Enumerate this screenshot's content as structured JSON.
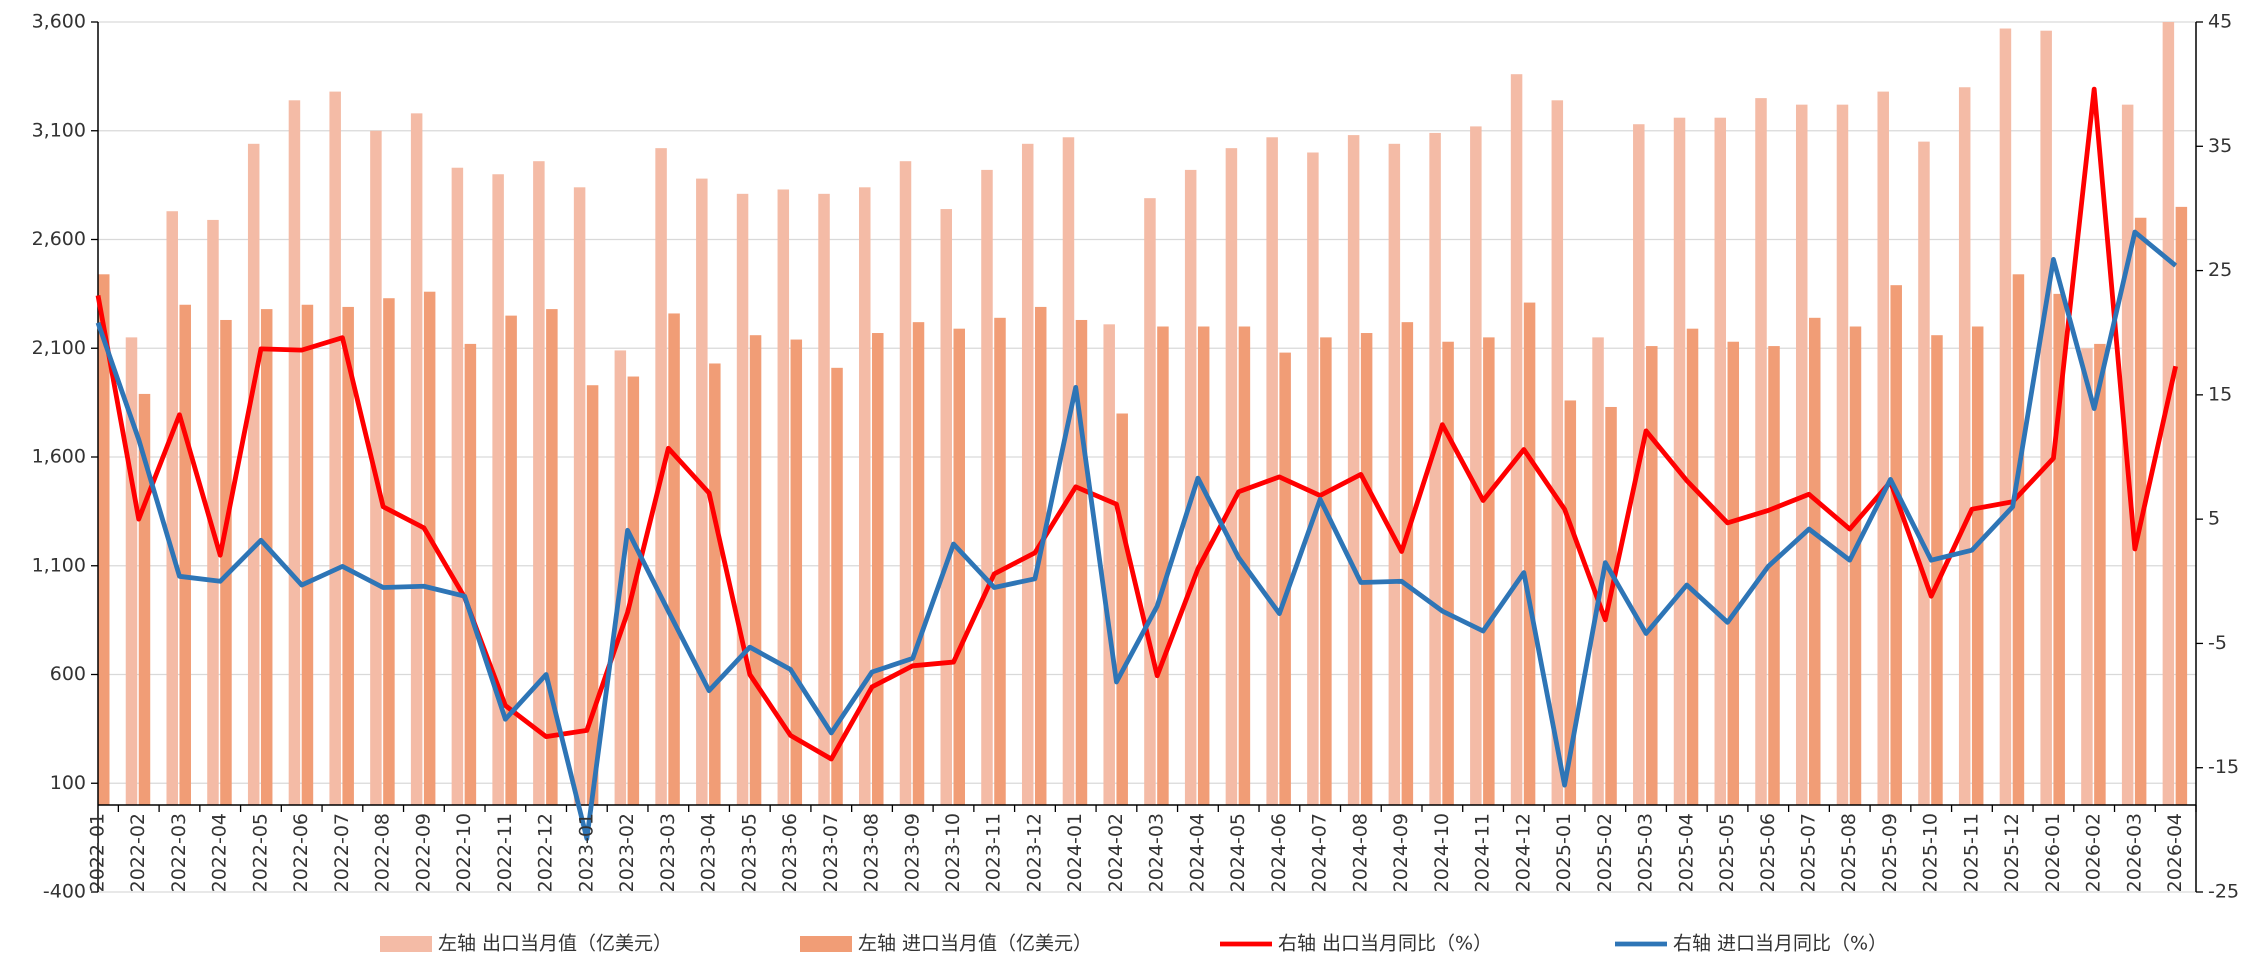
{
  "chart_data": {
    "type": "bar",
    "categories": [
      "2022-01",
      "2022-02",
      "2022-03",
      "2022-04",
      "2022-05",
      "2022-06",
      "2022-07",
      "2022-08",
      "2022-09",
      "2022-10",
      "2022-11",
      "2022-12",
      "2023-01",
      "2023-02",
      "2023-03",
      "2023-04",
      "2023-05",
      "2023-06",
      "2023-07",
      "2023-08",
      "2023-09",
      "2023-10",
      "2023-11",
      "2023-12",
      "2024-01",
      "2024-02",
      "2024-03",
      "2024-04",
      "2024-05",
      "2024-06",
      "2024-07",
      "2024-08",
      "2024-09",
      "2024-10",
      "2024-11",
      "2024-12",
      "2025-01",
      "2025-02",
      "2025-03",
      "2025-04",
      "2025-05",
      "2025-06",
      "2025-07",
      "2025-08",
      "2025-09",
      "2025-10",
      "2025-11",
      "2025-12",
      "2026-01",
      "2026-02",
      "2026-03",
      "2026-04"
    ],
    "series": [
      {
        "name": "左轴 出口当月值（亿美元）",
        "type": "bar",
        "color": "#f4bba6",
        "values": [
          null,
          2150,
          2730,
          2690,
          3040,
          3240,
          3280,
          3100,
          3180,
          2930,
          2900,
          2960,
          2840,
          2090,
          3020,
          2880,
          2810,
          2830,
          2810,
          2840,
          2960,
          2740,
          2920,
          3040,
          3070,
          2210,
          2790,
          2920,
          3020,
          3070,
          3000,
          3080,
          3040,
          3090,
          3120,
          3360,
          3240,
          2150,
          3130,
          3160,
          3160,
          3250,
          3220,
          3220,
          3280,
          3050,
          3300,
          3570,
          3560,
          2100,
          3220,
          3600
        ]
      },
      {
        "name": "左轴 进口当月值（亿美元）",
        "type": "bar",
        "color": "#f19d76",
        "values": [
          2440,
          1890,
          2300,
          2230,
          2280,
          2300,
          2290,
          2330,
          2360,
          2120,
          2250,
          2280,
          1930,
          1970,
          2260,
          2030,
          2160,
          2140,
          2010,
          2170,
          2220,
          2190,
          2240,
          2290,
          2230,
          1800,
          2200,
          2200,
          2200,
          2080,
          2150,
          2170,
          2220,
          2130,
          2150,
          2310,
          1860,
          1830,
          2110,
          2190,
          2130,
          2110,
          2240,
          2200,
          2390,
          2160,
          2200,
          2440,
          2350,
          2120,
          2700,
          2750
        ]
      },
      {
        "name": "右轴 出口当月同比（%）",
        "type": "line",
        "axis": "y2",
        "color": "#ff0000",
        "values": [
          23.0,
          5.0,
          13.4,
          2.1,
          18.7,
          18.6,
          19.6,
          6.0,
          4.3,
          -1.3,
          -10.0,
          -12.5,
          -12.0,
          -2.5,
          10.7,
          7.1,
          -7.5,
          -12.4,
          -14.3,
          -8.5,
          -6.8,
          -6.5,
          0.6,
          2.3,
          7.6,
          6.2,
          -7.6,
          1.0,
          7.2,
          8.4,
          6.9,
          8.6,
          2.4,
          12.6,
          6.5,
          10.6,
          5.8,
          -3.1,
          12.1,
          8.1,
          4.7,
          5.7,
          7.0,
          4.2,
          8.0,
          -1.2,
          5.8,
          6.4,
          9.9,
          39.6,
          2.6,
          17.3
        ]
      },
      {
        "name": "右轴 进口当月同比（%）",
        "type": "line",
        "axis": "y2",
        "color": "#2e75b6",
        "values": [
          20.8,
          11.4,
          0.4,
          0.0,
          3.3,
          -0.3,
          1.2,
          -0.5,
          -0.4,
          -1.2,
          -11.1,
          -7.5,
          -20.7,
          4.1,
          -2.4,
          -8.8,
          -5.3,
          -7.1,
          -12.2,
          -7.3,
          -6.2,
          3.0,
          -0.5,
          0.2,
          15.6,
          -8.1,
          -2.0,
          8.3,
          1.9,
          -2.6,
          6.6,
          -0.1,
          0.0,
          -2.4,
          -4.0,
          0.7,
          -16.4,
          1.5,
          -4.2,
          -0.3,
          -3.3,
          1.2,
          4.2,
          1.7,
          8.2,
          1.7,
          2.5,
          6.0,
          25.9,
          13.9,
          28.1,
          25.4
        ]
      }
    ],
    "ylim": [
      -400,
      3600
    ],
    "yticks": [
      -400,
      100,
      600,
      {
        "value": 1100,
        "label": "1,100"
      },
      {
        "value": 1600,
        "label": "1,600"
      },
      {
        "value": 2100,
        "label": "2,100"
      },
      {
        "value": 2600,
        "label": "2,600"
      },
      {
        "value": 3100,
        "label": "3,100"
      },
      {
        "value": 3600,
        "label": "3,600"
      }
    ],
    "y2lim": [
      -25,
      45
    ],
    "y2ticks": [
      -25,
      -15,
      -5,
      5,
      15,
      25,
      35,
      45
    ],
    "grid": true,
    "legend": "bottom"
  }
}
